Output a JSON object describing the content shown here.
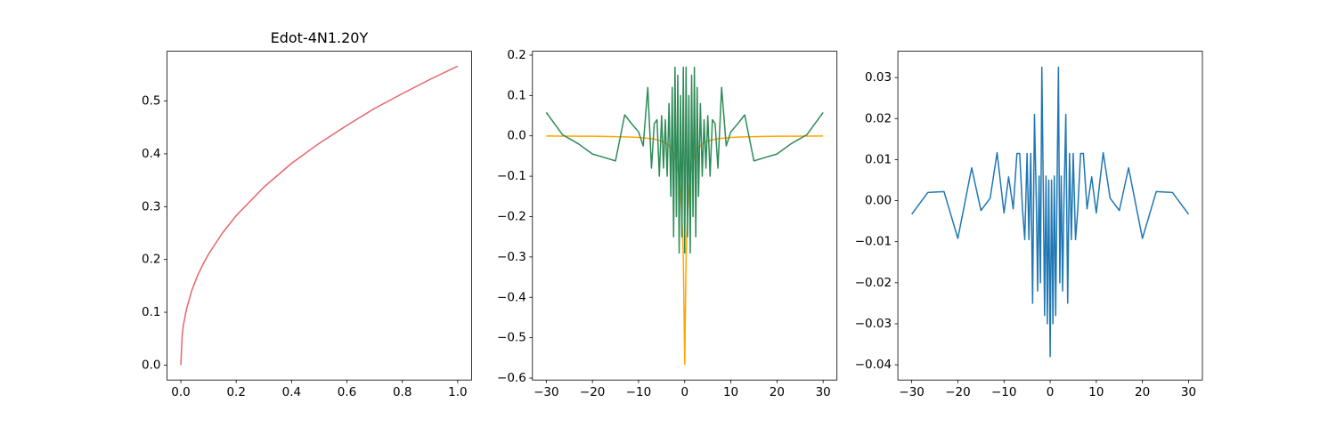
{
  "chart_data": [
    {
      "type": "line",
      "title": "Edot-4N1.20Y",
      "x": [
        0,
        0.005,
        0.01,
        0.02,
        0.04,
        0.06,
        0.08,
        0.1,
        0.15,
        0.2,
        0.3,
        0.4,
        0.5,
        0.6,
        0.7,
        0.8,
        0.9,
        1.0
      ],
      "series": [
        {
          "color": "#e8646a",
          "values": [
            0,
            0.058,
            0.078,
            0.105,
            0.142,
            0.169,
            0.191,
            0.21,
            0.25,
            0.283,
            0.337,
            0.382,
            0.42,
            0.454,
            0.486,
            0.514,
            0.541,
            0.566
          ]
        }
      ],
      "xlim": [
        -0.05,
        1.05
      ],
      "ylim": [
        -0.0283,
        0.5943
      ],
      "xticks": [
        {
          "value": 0,
          "label": "0.0"
        },
        0.2,
        0.4,
        0.6,
        0.8,
        {
          "value": 1,
          "label": "1.0"
        }
      ],
      "yticks": [
        {
          "value": 0,
          "label": "0.0"
        },
        0.1,
        0.2,
        0.3,
        0.4,
        0.5
      ]
    },
    {
      "type": "line",
      "x": [
        -30,
        -26.5,
        -23,
        -20,
        -17,
        -15,
        -13,
        -11.5,
        -10,
        -9,
        -8,
        -7.2,
        -6.6,
        -6,
        -5.5,
        -5,
        -4.6,
        -4.2,
        -3.8,
        -3.4,
        -3,
        -2.7,
        -2.4,
        -2.1,
        -1.8,
        -1.5,
        -1.2,
        -0.9,
        -0.6,
        -0.3,
        0,
        0.3,
        0.6,
        0.9,
        1.2,
        1.5,
        1.8,
        2.1,
        2.4,
        2.7,
        3,
        3.4,
        3.8,
        4.2,
        4.6,
        5,
        5.5,
        6,
        6.6,
        7.2,
        8,
        9,
        10,
        11.5,
        13,
        15,
        17,
        20,
        23,
        26.5,
        30
      ],
      "series": [
        {
          "color": "#ffa500",
          "values": [
            -0.0003,
            -0.0005,
            -0.0008,
            -0.001,
            -0.0015,
            -0.002,
            -0.0025,
            -0.003,
            -0.004,
            -0.005,
            -0.006,
            -0.007,
            -0.008,
            -0.01,
            -0.011,
            -0.013,
            -0.015,
            -0.018,
            -0.02,
            -0.025,
            -0.03,
            -0.035,
            -0.04,
            -0.05,
            -0.065,
            -0.08,
            -0.1,
            -0.14,
            -0.2,
            -0.3,
            -0.566,
            -0.3,
            -0.2,
            -0.14,
            -0.1,
            -0.08,
            -0.065,
            -0.05,
            -0.04,
            -0.035,
            -0.03,
            -0.025,
            -0.02,
            -0.018,
            -0.015,
            -0.013,
            -0.011,
            -0.01,
            -0.008,
            -0.007,
            -0.006,
            -0.005,
            -0.004,
            -0.003,
            -0.0025,
            -0.002,
            -0.0015,
            -0.001,
            -0.0008,
            -0.0005,
            -0.0003
          ]
        },
        {
          "color": "#2e8b57",
          "values": [
            0.058,
            0.003,
            -0.02,
            -0.045,
            -0.055,
            -0.062,
            0.052,
            0.03,
            0.01,
            -0.025,
            0.12,
            -0.08,
            0.03,
            0.04,
            -0.1,
            0.05,
            -0.08,
            0.04,
            -0.1,
            0.08,
            -0.15,
            0.12,
            -0.25,
            0.17,
            -0.2,
            0.15,
            -0.29,
            0.1,
            -0.25,
            0.17,
            -0.29,
            0.17,
            -0.25,
            0.1,
            -0.29,
            0.15,
            -0.2,
            0.17,
            -0.25,
            0.12,
            -0.15,
            0.08,
            -0.1,
            0.04,
            -0.08,
            0.05,
            -0.1,
            0.04,
            0.03,
            -0.08,
            0.12,
            -0.025,
            0.01,
            0.03,
            0.052,
            -0.062,
            -0.055,
            -0.045,
            -0.02,
            0.003,
            0.058
          ]
        }
      ],
      "xlim": [
        -33,
        33
      ],
      "ylim": [
        -0.6048,
        0.2096
      ],
      "xticks": [
        {
          "value": -30,
          "label": "−30"
        },
        {
          "value": -20,
          "label": "−20"
        },
        {
          "value": -10,
          "label": "−10"
        },
        0,
        10,
        20,
        30
      ],
      "yticks": [
        {
          "value": -0.6,
          "label": "−0.6"
        },
        {
          "value": -0.5,
          "label": "−0.5"
        },
        {
          "value": -0.4,
          "label": "−0.4"
        },
        {
          "value": -0.3,
          "label": "−0.3"
        },
        {
          "value": -0.2,
          "label": "−0.2"
        },
        {
          "value": -0.1,
          "label": "−0.1"
        },
        {
          "value": 0,
          "label": "0.0"
        },
        0.1,
        0.2
      ]
    },
    {
      "type": "line",
      "x": [
        -30,
        -26.5,
        -23,
        -20,
        -17,
        -15,
        -13,
        -11.5,
        -10,
        -9,
        -8,
        -7.2,
        -6.6,
        -6,
        -5.5,
        -5,
        -4.6,
        -4.2,
        -3.8,
        -3.4,
        -3,
        -2.7,
        -2.4,
        -2.1,
        -1.8,
        -1.5,
        -1.2,
        -0.9,
        -0.6,
        -0.3,
        0,
        0.3,
        0.6,
        0.9,
        1.2,
        1.5,
        1.8,
        2.1,
        2.4,
        2.7,
        3,
        3.4,
        3.8,
        4.2,
        4.6,
        5,
        5.5,
        6,
        6.6,
        7.2,
        8,
        9,
        10,
        11.5,
        13,
        15,
        17,
        20,
        23,
        26.5,
        30
      ],
      "series": [
        {
          "color": "#1f77b4",
          "values": [
            -0.0033,
            0.002,
            0.0022,
            -0.0092,
            0.008,
            -0.0024,
            0.0006,
            0.0117,
            -0.003,
            0.0058,
            -0.002,
            0.0115,
            0.0115,
            -0.002,
            -0.0095,
            0.0115,
            -0.0095,
            0.0115,
            -0.025,
            0.021,
            0,
            -0.022,
            0.006,
            -0.02,
            0.0325,
            0.004,
            -0.028,
            0.006,
            -0.03,
            0.005,
            -0.038,
            0.005,
            -0.03,
            0.006,
            -0.028,
            0.004,
            0.0325,
            -0.02,
            0.006,
            -0.022,
            0,
            0.021,
            -0.025,
            0.0115,
            -0.0095,
            0.0115,
            -0.0095,
            -0.002,
            0.0115,
            0.0115,
            -0.002,
            0.0058,
            -0.003,
            0.0117,
            0.0006,
            -0.0024,
            0.008,
            -0.0092,
            0.0022,
            0.002,
            -0.0033
          ]
        }
      ],
      "xlim": [
        -33,
        33
      ],
      "ylim": [
        -0.0437,
        0.0364
      ],
      "xticks": [
        {
          "value": -30,
          "label": "−30"
        },
        {
          "value": -20,
          "label": "−20"
        },
        {
          "value": -10,
          "label": "−10"
        },
        0,
        10,
        20,
        30
      ],
      "yticks": [
        {
          "value": -0.04,
          "label": "−0.04"
        },
        {
          "value": -0.03,
          "label": "−0.03"
        },
        {
          "value": -0.02,
          "label": "−0.02"
        },
        {
          "value": -0.01,
          "label": "−0.01"
        },
        {
          "value": 0,
          "label": "0.00"
        },
        0.01,
        0.02,
        0.03
      ]
    }
  ]
}
